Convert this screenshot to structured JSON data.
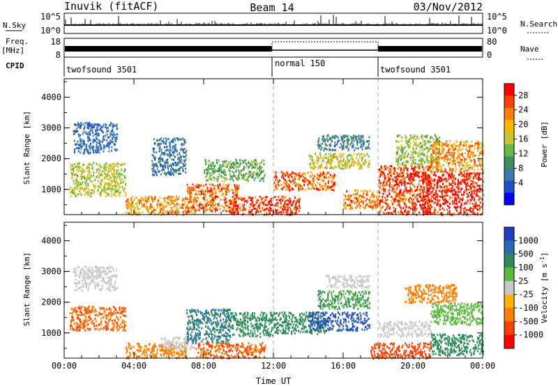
{
  "header": {
    "station": "Inuvik (fitACF)",
    "beam": "Beam 14",
    "date": "03/Nov/2012"
  },
  "panels": {
    "nsky": {
      "label": "N.Sky",
      "ticks": [
        "10^5",
        "10^0"
      ],
      "right_ticks": [
        "10^5",
        "10^0"
      ],
      "right_label": "N.Search"
    },
    "freq": {
      "label_top": "Freq.",
      "label_bottom": "[MHz]",
      "ticks": [
        "18",
        "8"
      ],
      "right_ticks": [
        "80",
        "0"
      ],
      "right_label": "Nave"
    },
    "cpid": {
      "label": "CPID",
      "segments": [
        {
          "start": 0,
          "end": 12,
          "name": "twofsound 3501"
        },
        {
          "start": 12,
          "end": 18,
          "name": "normal 150"
        },
        {
          "start": 18,
          "end": 24,
          "name": "twofsound 3501"
        }
      ]
    }
  },
  "chart_data": [
    {
      "type": "heatmap",
      "name": "power",
      "ylabel": "Slant Range [km]",
      "xlabel": "",
      "xlim": [
        0,
        24
      ],
      "ylim": [
        180,
        4600
      ],
      "x_ticks": [
        0,
        4,
        8,
        12,
        16,
        20,
        24
      ],
      "y_ticks": [
        1000,
        2000,
        3000,
        4000
      ],
      "colorbar": {
        "label": "Power [dB]",
        "tick_labels": [
          "4",
          "8",
          "12",
          "16",
          "20",
          "24",
          "28"
        ],
        "colors": [
          "#0000ff",
          "#1e4fd1",
          "#3e7aa8",
          "#3f8f5a",
          "#64b846",
          "#c8c82e",
          "#ffb400",
          "#ff8000",
          "#ff4000",
          "#ff0000"
        ]
      },
      "regions": [
        {
          "t0": 0.3,
          "t1": 3.5,
          "r0": 800,
          "r1": 1900,
          "value": 17
        },
        {
          "t0": 0.5,
          "t1": 3.0,
          "r0": 2200,
          "r1": 3200,
          "value": 8
        },
        {
          "t0": 3.5,
          "t1": 7.5,
          "r0": 200,
          "r1": 800,
          "value": 22
        },
        {
          "t0": 5.0,
          "t1": 7.0,
          "r0": 1500,
          "r1": 2700,
          "value": 9
        },
        {
          "t0": 7.0,
          "t1": 10.0,
          "r0": 300,
          "r1": 1200,
          "value": 24
        },
        {
          "t0": 8.0,
          "t1": 11.5,
          "r0": 1300,
          "r1": 2000,
          "value": 14
        },
        {
          "t0": 9.5,
          "t1": 13.5,
          "r0": 200,
          "r1": 800,
          "value": 27
        },
        {
          "t0": 12.0,
          "t1": 15.5,
          "r0": 1000,
          "r1": 1600,
          "value": 25
        },
        {
          "t0": 14.0,
          "t1": 17.5,
          "r0": 1700,
          "r1": 2200,
          "value": 18
        },
        {
          "t0": 14.5,
          "t1": 17.5,
          "r0": 2300,
          "r1": 2800,
          "value": 10
        },
        {
          "t0": 16.0,
          "t1": 18.0,
          "r0": 400,
          "r1": 1000,
          "value": 23
        },
        {
          "t0": 18.0,
          "t1": 21.0,
          "r0": 200,
          "r1": 1800,
          "value": 27
        },
        {
          "t0": 19.0,
          "t1": 21.5,
          "r0": 1800,
          "r1": 2800,
          "value": 16
        },
        {
          "t0": 20.5,
          "t1": 24.0,
          "r0": 200,
          "r1": 1600,
          "value": 29
        },
        {
          "t0": 21.0,
          "t1": 24.0,
          "r0": 1600,
          "r1": 2600,
          "value": 22
        }
      ]
    },
    {
      "type": "heatmap",
      "name": "velocity",
      "ylabel": "Slant Range [km]",
      "xlabel": "Time UT",
      "xlim": [
        0,
        24
      ],
      "ylim": [
        180,
        4600
      ],
      "x_ticks": [
        0,
        4,
        8,
        12,
        16,
        20,
        24
      ],
      "x_tick_labels": [
        "00:00",
        "04:00",
        "08:00",
        "12:00",
        "16:00",
        "20:00",
        "00:00"
      ],
      "y_ticks": [
        1000,
        2000,
        3000,
        4000
      ],
      "colorbar": {
        "label": "Velocity [m s",
        "label_superscript": "-1",
        "label_suffix": "]",
        "tick_labels": [
          "1000",
          "500",
          "100",
          "25",
          "-25",
          "-100",
          "-500",
          "-1000"
        ],
        "colors": [
          "#1e3cc8",
          "#2a6ab0",
          "#2e8c5a",
          "#5cb840",
          "#c8c8c8",
          "#ffb000",
          "#ff8000",
          "#ff4000",
          "#ff0000"
        ]
      },
      "regions": [
        {
          "t0": 0.3,
          "t1": 3.5,
          "r0": 1100,
          "r1": 1900,
          "value": -300
        },
        {
          "t0": 0.5,
          "t1": 3.0,
          "r0": 2400,
          "r1": 3200,
          "value": 0
        },
        {
          "t0": 3.5,
          "t1": 7.0,
          "r0": 200,
          "r1": 700,
          "value": -150
        },
        {
          "t0": 5.5,
          "t1": 7.5,
          "r0": 500,
          "r1": 900,
          "value": 0
        },
        {
          "t0": 7.0,
          "t1": 9.5,
          "r0": 700,
          "r1": 1800,
          "value": 300
        },
        {
          "t0": 7.5,
          "t1": 11.5,
          "r0": 200,
          "r1": 700,
          "value": -300
        },
        {
          "t0": 9.5,
          "t1": 12.0,
          "r0": 900,
          "r1": 1700,
          "value": 200
        },
        {
          "t0": 12.0,
          "t1": 15.0,
          "r0": 1000,
          "r1": 1700,
          "value": 150
        },
        {
          "t0": 14.0,
          "t1": 17.5,
          "r0": 1100,
          "r1": 1700,
          "value": 700
        },
        {
          "t0": 14.5,
          "t1": 17.5,
          "r0": 1800,
          "r1": 2400,
          "value": 60
        },
        {
          "t0": 15.0,
          "t1": 17.5,
          "r0": 2500,
          "r1": 2900,
          "value": 0
        },
        {
          "t0": 17.5,
          "t1": 21.0,
          "r0": 200,
          "r1": 700,
          "value": -400
        },
        {
          "t0": 18.0,
          "t1": 21.0,
          "r0": 900,
          "r1": 1400,
          "value": 0
        },
        {
          "t0": 21.0,
          "t1": 24.0,
          "r0": 300,
          "r1": 1000,
          "value": 150
        },
        {
          "t0": 21.0,
          "t1": 24.0,
          "r0": 1300,
          "r1": 2000,
          "value": 40
        },
        {
          "t0": 19.5,
          "t1": 22.5,
          "r0": 2000,
          "r1": 2600,
          "value": -150
        }
      ]
    }
  ]
}
